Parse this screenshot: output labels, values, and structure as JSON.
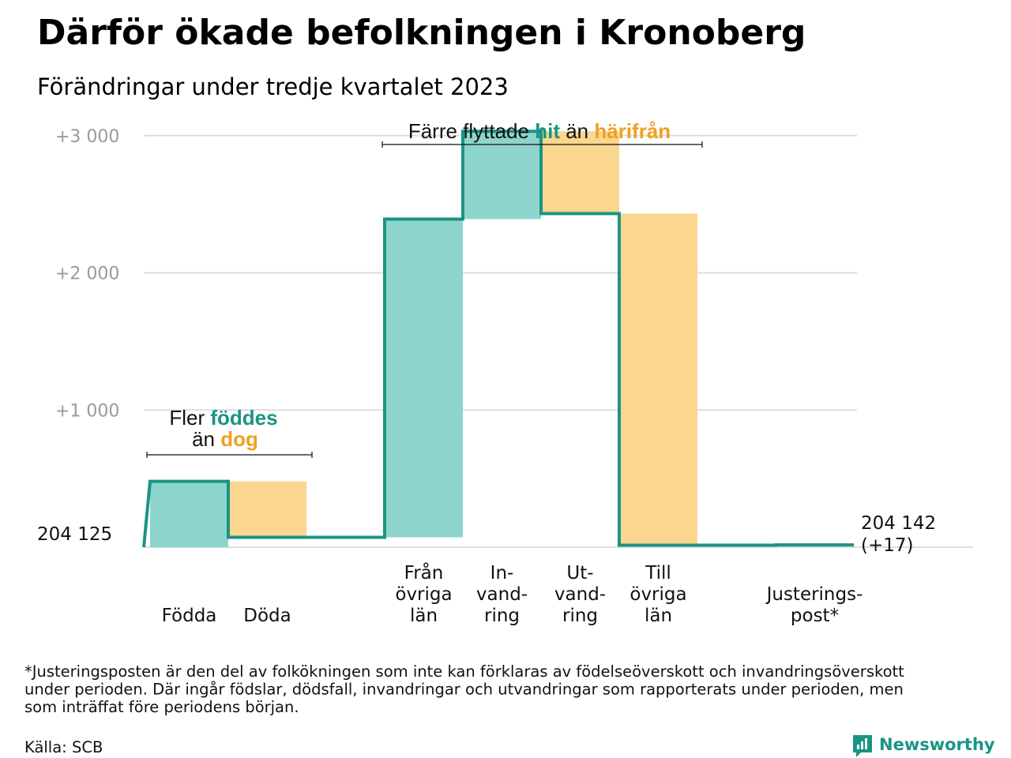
{
  "title": "Därför ökade befolkningen i Kronoberg",
  "subtitle": "Förändringar under tredje kvartalet 2023",
  "colors": {
    "increase_fill": "#8dd5cc",
    "decrease_fill": "#fad68f",
    "line": "#1a9482",
    "grid": "#dddddd",
    "hit_text": "#1a9482",
    "harifran_text": "#f0a020",
    "tick_text": "#9a9a9a"
  },
  "annotations": {
    "births": {
      "line1_prefix": "Fler ",
      "line1_highlight": "föddes",
      "line2_prefix": "än ",
      "line2_highlight": "dog"
    },
    "migration": {
      "prefix": "Färre flyttade ",
      "highlight1": "hit",
      "middle": " än ",
      "highlight2": "härifrån"
    }
  },
  "base_label": "204 125",
  "end_label": "204 142",
  "end_change": "(+17)",
  "footnote": [
    "*Justeringsposten är den del av folkökningen som inte kan förklaras av födelseöverskott och invandringsöverskott",
    "under perioden. Där ingår födslar, dödsfall, invandringar och utvandringar som rapporterats under perioden, men",
    "som inträffat före periodens början."
  ],
  "source": "Källa: SCB",
  "brand": "Newsworthy",
  "chart_data": {
    "type": "bar",
    "subtype": "waterfall",
    "base_value": 204125,
    "end_value": 204142,
    "total_change": 17,
    "yticks": [
      {
        "value": 1000,
        "label": "+1   000"
      },
      {
        "value": 2000,
        "label": "+2   000"
      },
      {
        "value": 3000,
        "label": "+3   000"
      }
    ],
    "y_range": [
      -40,
      3160
    ],
    "grid": true,
    "categories": [
      {
        "lines": [
          "Födda"
        ],
        "change": 480,
        "kind": "increase"
      },
      {
        "lines": [
          "Döda"
        ],
        "change": -408,
        "kind": "decrease"
      },
      {
        "lines": [],
        "change": 0,
        "kind": "gap"
      },
      {
        "lines": [
          "Från",
          "övriga",
          "län"
        ],
        "change": 2320,
        "kind": "increase"
      },
      {
        "lines": [
          "In-",
          "vand-",
          "ring"
        ],
        "change": 640,
        "kind": "increase"
      },
      {
        "lines": [
          "Ut-",
          "vand-",
          "ring"
        ],
        "change": -600,
        "kind": "decrease"
      },
      {
        "lines": [
          "Till",
          "övriga",
          "län"
        ],
        "change": -2417,
        "kind": "decrease"
      },
      {
        "lines": [],
        "change": 0,
        "kind": "gap"
      },
      {
        "lines": [
          "Justerings-",
          "post*"
        ],
        "change": 2,
        "kind": "increase"
      }
    ]
  }
}
